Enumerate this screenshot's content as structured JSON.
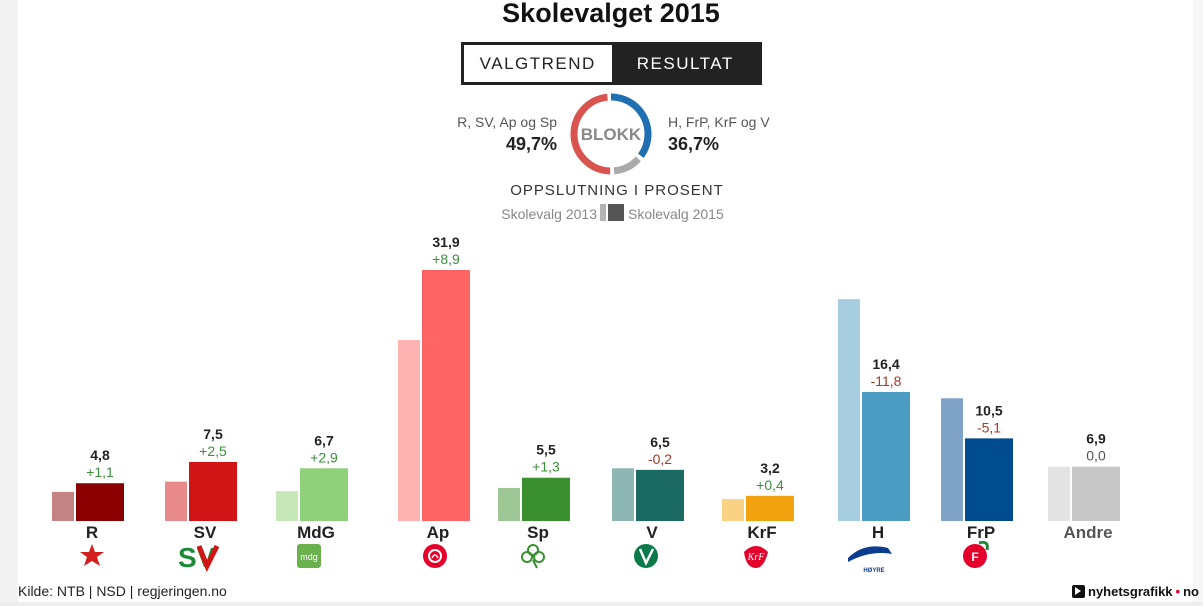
{
  "title": "Skolevalget 2015",
  "tabs": {
    "trend": "VALGTREND",
    "result": "RESULTAT"
  },
  "blokk": {
    "center": "BLOKK",
    "left_label": "R, SV, Ap og Sp",
    "left_value": "49,7%",
    "right_label": "H, FrP, KrF og V",
    "right_value": "36,7%",
    "left_color": "#d9534f",
    "right_color": "#1f6fb2",
    "rest_color": "#aaaaaa"
  },
  "subtitle": "OPPSLUTNING I PROSENT",
  "legend": {
    "prev": "Skolevalg 2013",
    "curr": "Skolevalg 2015"
  },
  "chart_data": {
    "type": "bar",
    "title": "Skolevalget 2015",
    "ylabel": "OPPSLUTNING I PROSENT",
    "ylim": [
      0,
      35
    ],
    "categories": [
      "R",
      "SV",
      "MdG",
      "Ap",
      "Sp",
      "V",
      "KrF",
      "H",
      "FrP",
      "Andre"
    ],
    "series": [
      {
        "name": "Skolevalg 2013",
        "values": [
          3.7,
          5.0,
          3.8,
          23.0,
          4.2,
          6.7,
          2.8,
          28.2,
          15.6,
          6.9
        ]
      },
      {
        "name": "Skolevalg 2015",
        "values": [
          4.8,
          7.5,
          6.7,
          31.9,
          5.5,
          6.5,
          3.2,
          16.4,
          10.5,
          6.9
        ]
      }
    ],
    "value_labels": [
      "4,8",
      "7,5",
      "6,7",
      "31,9",
      "5,5",
      "6,5",
      "3,2",
      "16,4",
      "10,5",
      "6,9"
    ],
    "change_labels": [
      "+1,1",
      "+2,5",
      "+2,9",
      "+8,9",
      "+1,3",
      "-0,2",
      "+0,4",
      "-11,8",
      "-5,1",
      "0,0"
    ],
    "colors_2015": [
      "#8b0000",
      "#d11416",
      "#8fd07a",
      "#ff6464",
      "#3a8f2f",
      "#1b6a64",
      "#f2a30f",
      "#4a9cc3",
      "#004b8d",
      "#c8c8c8"
    ],
    "colors_2013": [
      "#c48383",
      "#e88a8a",
      "#c6e8b9",
      "#ffb3b3",
      "#9cc795",
      "#8db7b3",
      "#f9d283",
      "#a6cde0",
      "#7fa4c8",
      "#e3e3e3"
    ],
    "positive_color": "#3c8d3c",
    "negative_color": "#a33a2a"
  },
  "logos": [
    "R",
    "SV",
    "mdg",
    "Ap",
    "Sp",
    "V",
    "KrF",
    "HØYRE",
    "FrP"
  ],
  "footer": {
    "source": "Kilde: NTB | NSD | regjeringen.no",
    "brand": "nyhetsgrafikk",
    "brand_dot": "•",
    "brand_tail": "no"
  }
}
